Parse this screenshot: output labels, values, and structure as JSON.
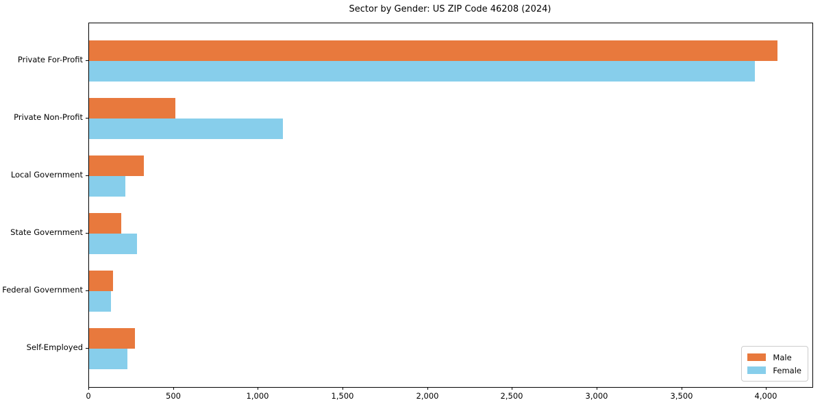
{
  "title": "Sector by Gender: US ZIP Code 46208 (2024)",
  "chart_data": {
    "type": "bar",
    "orientation": "horizontal",
    "title": "Sector by Gender: US ZIP Code 46208 (2024)",
    "categories": [
      "Private For-Profit",
      "Private Non-Profit",
      "Local Government",
      "State Government",
      "Federal Government",
      "Self-Employed"
    ],
    "series": [
      {
        "name": "Male",
        "color": "#e8793d",
        "values": [
          4065,
          510,
          325,
          190,
          140,
          270
        ]
      },
      {
        "name": "Female",
        "color": "#87ceeb",
        "values": [
          3930,
          1145,
          215,
          285,
          130,
          225
        ]
      }
    ],
    "xlabel": "",
    "ylabel": "",
    "xlim": [
      0,
      4270
    ],
    "xticks": [
      0,
      500,
      1000,
      1500,
      2000,
      2500,
      3000,
      3500,
      4000
    ],
    "xtick_labels": [
      "0",
      "500",
      "1,000",
      "1,500",
      "2,000",
      "2,500",
      "3,000",
      "3,500",
      "4,000"
    ],
    "grid": false,
    "legend": {
      "position": "lower right",
      "entries": [
        "Male",
        "Female"
      ]
    }
  }
}
